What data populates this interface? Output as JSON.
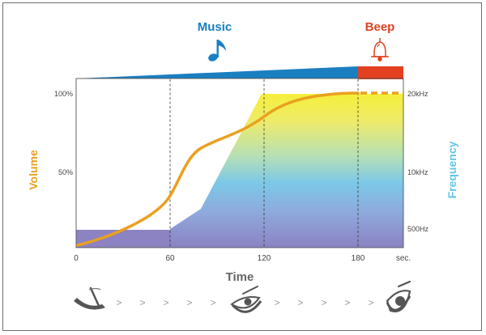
{
  "header": {
    "music_label": "Music",
    "beep_label": "Beep",
    "music_icon": "music-note-icon",
    "beep_icon": "bell-icon"
  },
  "axes": {
    "volume_label": "Volume",
    "frequency_label": "Frequency",
    "time_label": "Time",
    "volume_ticks": [
      "100%",
      "50%"
    ],
    "frequency_ticks": [
      "20kHz",
      "10kHz",
      "500Hz"
    ],
    "time_ticks": [
      "0",
      "60",
      "120",
      "180",
      "sec."
    ]
  },
  "colors": {
    "music_blue": "#1a7fc1",
    "beep_red": "#e2401f",
    "volume_orange": "#eaa020",
    "frequency_cyan": "#62c5e8",
    "band_purple": "#8c83c2"
  },
  "eye_sequence": {
    "icons": [
      "closed-eye-icon",
      "half-open-eye-icon",
      "open-eye-icon"
    ],
    "separator": ">"
  }
}
